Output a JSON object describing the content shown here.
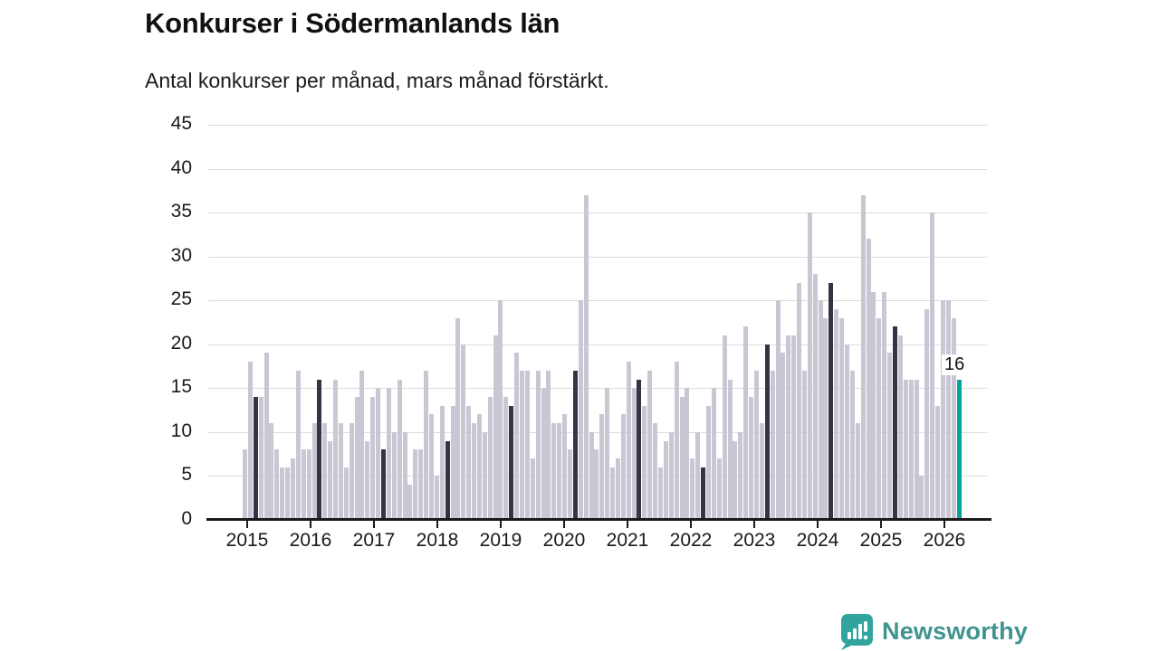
{
  "header": {
    "title": "Konkurser i Södermanlands län",
    "subtitle": "Antal konkurser per månad, mars månad förstärkt."
  },
  "chart_data": {
    "type": "bar",
    "title": "Konkurser i Södermanlands län",
    "subtitle": "Antal konkurser per månad, mars månad förstärkt.",
    "xlabel": "",
    "ylabel": "",
    "ylim": [
      0,
      45
    ],
    "yticks": [
      0,
      5,
      10,
      15,
      20,
      25,
      30,
      35,
      40,
      45
    ],
    "grid": true,
    "legend": null,
    "year_labels": [
      "2015",
      "2016",
      "2017",
      "2018",
      "2019",
      "2020",
      "2021",
      "2022",
      "2023",
      "2024",
      "2025",
      "2026"
    ],
    "months_per_year": 12,
    "series": [
      {
        "year": "2015",
        "values": [
          8,
          18,
          14,
          14,
          19,
          11,
          8,
          6,
          6,
          7,
          17,
          8
        ]
      },
      {
        "year": "2016",
        "values": [
          8,
          11,
          16,
          11,
          9,
          16,
          11,
          6,
          11,
          14,
          17,
          9
        ]
      },
      {
        "year": "2017",
        "values": [
          14,
          15,
          8,
          15,
          10,
          16,
          10,
          4,
          8,
          8,
          17,
          12
        ]
      },
      {
        "year": "2018",
        "values": [
          5,
          13,
          9,
          13,
          23,
          20,
          13,
          11,
          12,
          10,
          14,
          21
        ]
      },
      {
        "year": "2019",
        "values": [
          25,
          14,
          13,
          19,
          17,
          17,
          7,
          17,
          15,
          17,
          11,
          11
        ]
      },
      {
        "year": "2020",
        "values": [
          12,
          8,
          17,
          25,
          37,
          10,
          8,
          12,
          15,
          6,
          7,
          12
        ]
      },
      {
        "year": "2021",
        "values": [
          18,
          15,
          16,
          13,
          17,
          11,
          6,
          9,
          10,
          18,
          14,
          15
        ]
      },
      {
        "year": "2022",
        "values": [
          7,
          10,
          6,
          13,
          15,
          7,
          21,
          16,
          9,
          10,
          22,
          14
        ]
      },
      {
        "year": "2023",
        "values": [
          17,
          11,
          20,
          17,
          25,
          19,
          21,
          21,
          27,
          17,
          35,
          28
        ]
      },
      {
        "year": "2024",
        "values": [
          25,
          23,
          27,
          24,
          23,
          20,
          17,
          11,
          37,
          32,
          26,
          23
        ]
      },
      {
        "year": "2025",
        "values": [
          26,
          19,
          22,
          21,
          16,
          16,
          16,
          5,
          24,
          35,
          13,
          25
        ]
      },
      {
        "year": "2026",
        "values": [
          25,
          23,
          16
        ]
      }
    ],
    "highlighted_month_index": 2,
    "annotation": {
      "label": "16",
      "target": "mars 2026"
    },
    "colors": {
      "bar": "#c9c7d3",
      "march": "#363344",
      "latest": "#00a49a",
      "grid": "#dcdcdc",
      "axis": "#1a1a1a"
    }
  },
  "footer": {
    "brand": "Newsworthy",
    "brand_color": "#3f948f",
    "badge_color": "#31a59d"
  }
}
